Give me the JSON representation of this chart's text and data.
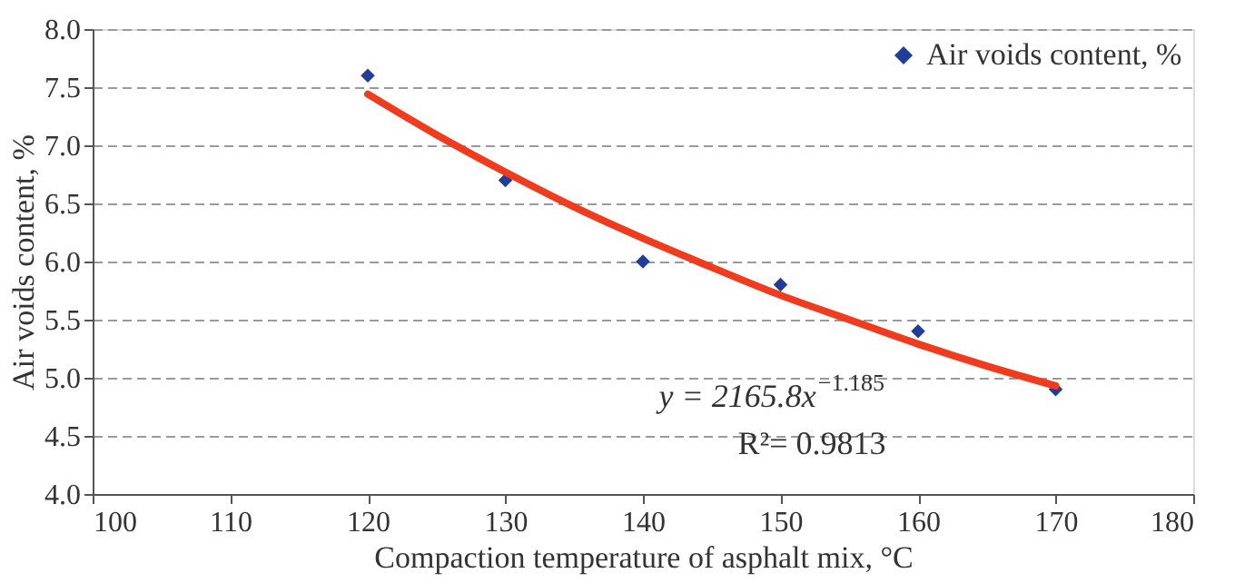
{
  "chart_data": {
    "type": "scatter",
    "xlabel": "Compaction temperature of asphalt mix, °C",
    "ylabel": "Air voids content, %",
    "xlim": [
      100,
      180
    ],
    "xticks": [
      100,
      110,
      120,
      130,
      140,
      150,
      160,
      170,
      180
    ],
    "ylim": [
      4.0,
      8.0
    ],
    "yticks": [
      {
        "value": 4.0,
        "label": "4.0"
      },
      {
        "value": 4.5,
        "label": "4.5"
      },
      {
        "value": 5.0,
        "label": "5.0"
      },
      {
        "value": 5.5,
        "label": "5.5"
      },
      {
        "value": 6.0,
        "label": "6.0"
      },
      {
        "value": 6.5,
        "label": "6.5"
      },
      {
        "value": 7.0,
        "label": "7.0"
      },
      {
        "value": 7.5,
        "label": "7.5"
      },
      {
        "value": 8.0,
        "label": "8.0"
      }
    ],
    "grid": "y",
    "legend": "top right",
    "series": [
      {
        "name": "Air voids content, %",
        "type": "scatter",
        "marker": "diamond",
        "color": "#1f3d99",
        "x": [
          120,
          130,
          140,
          150,
          160,
          170
        ],
        "values": [
          7.6,
          6.7,
          6.0,
          5.8,
          5.4,
          4.9
        ]
      },
      {
        "type": "line",
        "color": "#f03c1e",
        "line_style": "solid",
        "x": [
          120,
          125,
          130,
          135,
          140,
          145,
          150,
          155,
          160,
          165,
          170
        ],
        "values": [
          7.44,
          7.09,
          6.77,
          6.47,
          6.2,
          5.95,
          5.71,
          5.5,
          5.29,
          5.1,
          4.93
        ]
      }
    ],
    "annotations": [
      "y = 2165.8x$^{−1.185}$",
      "R²= 0.9813"
    ]
  }
}
